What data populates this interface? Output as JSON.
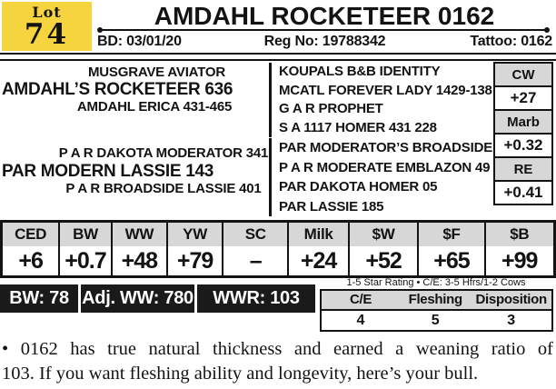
{
  "header": {
    "lot_label": "Lot",
    "lot_number": "74",
    "title": "AMDAHL ROCKETEER 0162",
    "bd": "BD: 03/01/20",
    "reg_no": "Reg No: 19788342",
    "tattoo": "Tattoo: 0162"
  },
  "pedigree": {
    "sire_sire": "MUSGRAVE AVIATOR",
    "sire": "AMDAHL’S ROCKETEER 636",
    "sire_dam": "AMDAHL ERICA 431-465",
    "dam_sire": "P A R DAKOTA MODERATOR 341",
    "dam": "PAR MODERN LASSIE 143",
    "dam_dam": "P A R BROADSIDE LASSIE 401",
    "extended_sire": [
      "KOUPALS B&B IDENTITY",
      "MCATL FOREVER LADY 1429-138",
      "G A R PROPHET",
      "S A 1117 HOMER 431 228"
    ],
    "extended_dam": [
      "PAR MODERATOR’S BROADSIDE 09",
      "P A R MODERATE EMBLAZON 49",
      "PAR  DAKOTA HOMER 05",
      "PAR LASSIE 185"
    ]
  },
  "carcass_epd": [
    {
      "label": "CW",
      "value": "+27"
    },
    {
      "label": "Marb",
      "value": "+0.32"
    },
    {
      "label": "RE",
      "value": "+0.41"
    }
  ],
  "epd_table": {
    "columns": [
      {
        "label": "CED",
        "value": "+6"
      },
      {
        "label": "BW",
        "value": "+0.7"
      },
      {
        "label": "WW",
        "value": "+48"
      },
      {
        "label": "YW",
        "value": "+79"
      },
      {
        "label": "SC",
        "value": "–"
      },
      {
        "label": "Milk",
        "value": "+24"
      },
      {
        "label": "$W",
        "value": "+52"
      },
      {
        "label": "$F",
        "value": "+65"
      },
      {
        "label": "$B",
        "value": "+99"
      }
    ]
  },
  "weights_bar": {
    "bw": "BW: 78",
    "adj_ww": "Adj. WW: 780",
    "wwr": "WWR: 103"
  },
  "star_rating": {
    "caption": "1-5 Star Rating • C/E: 3-5 Hfrs/1-2 Cows",
    "columns": [
      {
        "label": "C/E",
        "value": "4"
      },
      {
        "label": "Fleshing",
        "value": "5"
      },
      {
        "label": "Disposition",
        "value": "3"
      }
    ]
  },
  "footnote": {
    "line1": "• 0162 has true natural thickness and earned a weaning ratio of",
    "line2": "103. If you want fleshing ability and longevity, here’s your bull."
  },
  "colors": {
    "lot_badge_bg": "#F6D43F",
    "table_header_bg": "#D7D7D7",
    "bar_bg": "#1A1A1A",
    "ink": "#131313"
  }
}
